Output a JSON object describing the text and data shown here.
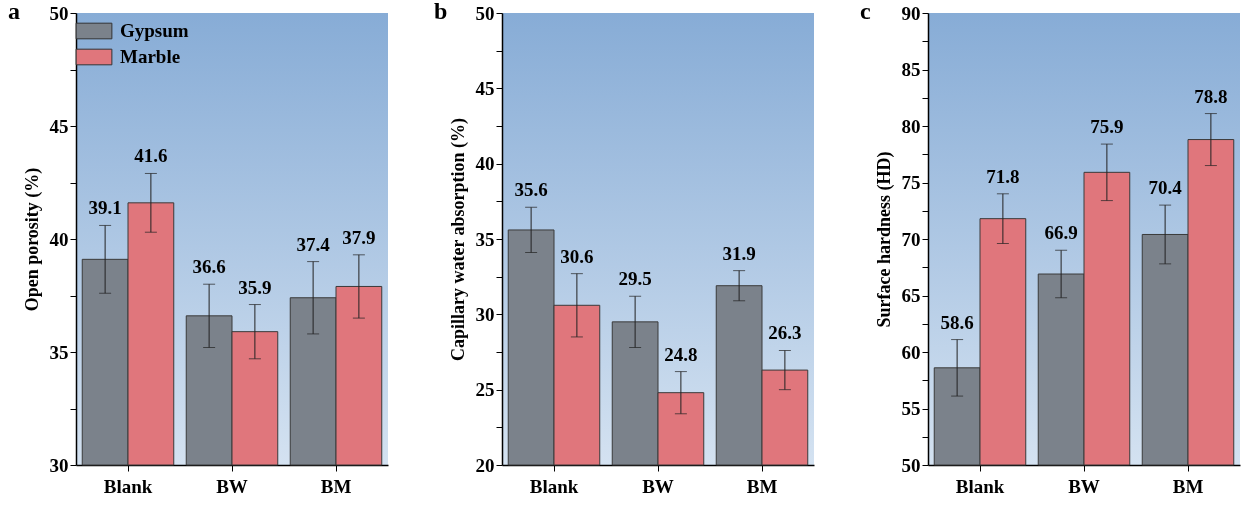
{
  "chart_data": [
    {
      "type": "bar",
      "title": "a",
      "ylabel": "Open porosity (%)",
      "categories": [
        "Blank",
        "BW",
        "BM"
      ],
      "series": [
        {
          "name": "Gypsum",
          "color": "#7b828b",
          "values": [
            39.1,
            36.6,
            37.4
          ],
          "errors": [
            1.5,
            1.4,
            1.6
          ]
        },
        {
          "name": "Marble",
          "color": "#e0767c",
          "values": [
            41.6,
            35.9,
            37.9
          ],
          "errors": [
            1.3,
            1.2,
            1.4
          ]
        }
      ],
      "ylim": [
        30,
        50
      ],
      "yticks": [
        30,
        {
          "value": 32.5,
          "label": null
        },
        35,
        {
          "value": 37.5,
          "label": null
        },
        40,
        {
          "value": 42.5,
          "label": null
        },
        45,
        {
          "value": 47.5,
          "label": null
        },
        50
      ],
      "data_labels": true,
      "legend": "top left",
      "grid": false
    },
    {
      "type": "bar",
      "title": "b",
      "ylabel": "Capillary water absorption (%)",
      "categories": [
        "Blank",
        "BW",
        "BM"
      ],
      "series": [
        {
          "name": "Gypsum",
          "color": "#7b828b",
          "values": [
            35.6,
            29.5,
            31.9
          ],
          "errors": [
            1.5,
            1.7,
            1.0
          ]
        },
        {
          "name": "Marble",
          "color": "#e0767c",
          "values": [
            30.6,
            24.8,
            26.3
          ],
          "errors": [
            2.1,
            1.4,
            1.3
          ]
        }
      ],
      "ylim": [
        20,
        50
      ],
      "yticks": [
        20,
        {
          "value": 22.5,
          "label": null
        },
        25,
        {
          "value": 27.5,
          "label": null
        },
        30,
        {
          "value": 32.5,
          "label": null
        },
        35,
        {
          "value": 37.5,
          "label": null
        },
        40,
        {
          "value": 42.5,
          "label": null
        },
        45,
        {
          "value": 47.5,
          "label": null
        },
        50
      ],
      "data_labels": true,
      "legend": "top left",
      "grid": false
    },
    {
      "type": "bar",
      "title": "c",
      "ylabel": "Surface hardness (HD)",
      "categories": [
        "Blank",
        "BW",
        "BM"
      ],
      "series": [
        {
          "name": "Gypsum",
          "color": "#7b828b",
          "values": [
            58.6,
            66.9,
            70.4
          ],
          "errors": [
            2.5,
            2.1,
            2.6
          ]
        },
        {
          "name": "Marble",
          "color": "#e0767c",
          "values": [
            71.8,
            75.9,
            78.8
          ],
          "errors": [
            2.2,
            2.5,
            2.3
          ]
        }
      ],
      "ylim": [
        50,
        90
      ],
      "yticks": [
        50,
        {
          "value": 52.5,
          "label": null
        },
        55,
        {
          "value": 57.5,
          "label": null
        },
        60,
        {
          "value": 62.5,
          "label": null
        },
        65,
        {
          "value": 67.5,
          "label": null
        },
        70,
        {
          "value": 72.5,
          "label": null
        },
        75,
        {
          "value": 77.5,
          "label": null
        },
        80,
        {
          "value": 82.5,
          "label": null
        },
        85,
        {
          "value": 87.5,
          "label": null
        },
        90
      ],
      "data_labels": true,
      "legend": "top left",
      "grid": false
    }
  ]
}
